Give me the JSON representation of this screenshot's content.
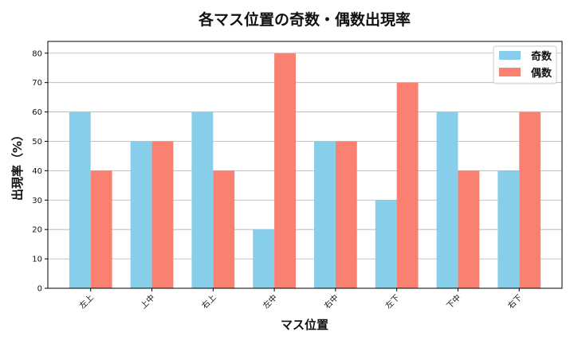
{
  "chart_data": {
    "type": "bar",
    "title": "各マス位置の奇数・偶数出現率",
    "xlabel": "マス位置",
    "ylabel": "出現率（%）",
    "categories": [
      "左上",
      "上中",
      "右上",
      "左中",
      "右中",
      "左下",
      "下中",
      "右下"
    ],
    "series": [
      {
        "name": "奇数",
        "color": "#87CEEB",
        "values": [
          60,
          50,
          60,
          20,
          50,
          30,
          60,
          40
        ]
      },
      {
        "name": "偶数",
        "color": "#FA8072",
        "values": [
          40,
          50,
          40,
          80,
          50,
          70,
          40,
          60
        ]
      }
    ],
    "ylim": [
      0,
      84
    ],
    "yticks": [
      0,
      10,
      20,
      30,
      40,
      50,
      60,
      70,
      80
    ],
    "grid": "y",
    "legend_position": "top-right"
  }
}
